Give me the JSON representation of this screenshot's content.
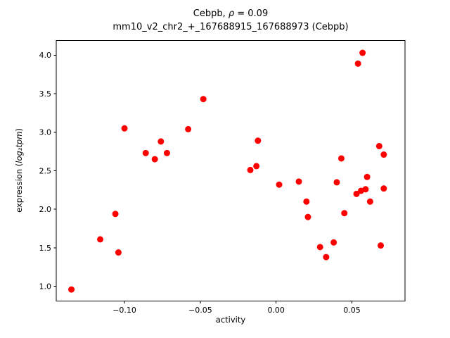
{
  "title": {
    "line1_prefix": "Cebpb, ",
    "line1_rho": "ρ",
    "line1_rest": " = 0.09",
    "line2": "mm10_v2_chr2_+_167688915_167688973 (Cebpb)"
  },
  "ylabel_parts": {
    "prefix": "expression (",
    "math": "log₂tpm",
    "suffix": ")"
  },
  "chart_data": {
    "type": "scatter",
    "title": "Cebpb, ρ = 0.09",
    "subtitle": "mm10_v2_chr2_+_167688915_167688973 (Cebpb)",
    "xlabel": "activity",
    "ylabel": "expression (log₂tpm)",
    "marker_color": "#ff0000",
    "marker_radius": 4.5,
    "grid": false,
    "legend": "none",
    "xlim": [
      -0.145,
      0.085
    ],
    "ylim": [
      0.81,
      4.19
    ],
    "x_ticks": {
      "values": [
        -0.1,
        -0.05,
        0.0,
        0.05
      ],
      "labels": [
        "−0.10",
        "−0.05",
        "0.00",
        "0.05"
      ]
    },
    "y_ticks": {
      "values": [
        1.0,
        1.5,
        2.0,
        2.5,
        3.0,
        3.5,
        4.0
      ],
      "labels": [
        "1.0",
        "1.5",
        "2.0",
        "2.5",
        "3.0",
        "3.5",
        "4.0"
      ]
    },
    "x": [
      -0.135,
      -0.116,
      -0.106,
      -0.104,
      -0.1,
      -0.086,
      -0.08,
      -0.076,
      -0.072,
      -0.058,
      -0.048,
      -0.017,
      -0.013,
      -0.012,
      0.002,
      0.015,
      0.02,
      0.021,
      0.029,
      0.033,
      0.038,
      0.04,
      0.043,
      0.045,
      0.054,
      0.057,
      0.053,
      0.056,
      0.059,
      0.06,
      0.062,
      0.068,
      0.071,
      0.071,
      0.069
    ],
    "y": [
      0.96,
      1.61,
      1.94,
      1.44,
      3.05,
      2.73,
      2.65,
      2.88,
      2.73,
      3.04,
      3.43,
      2.51,
      2.56,
      2.89,
      2.32,
      2.36,
      2.1,
      1.9,
      1.51,
      1.38,
      1.57,
      2.35,
      2.66,
      1.95,
      3.89,
      4.03,
      2.2,
      2.24,
      2.26,
      2.42,
      2.1,
      2.82,
      2.71,
      2.27,
      1.53
    ]
  }
}
